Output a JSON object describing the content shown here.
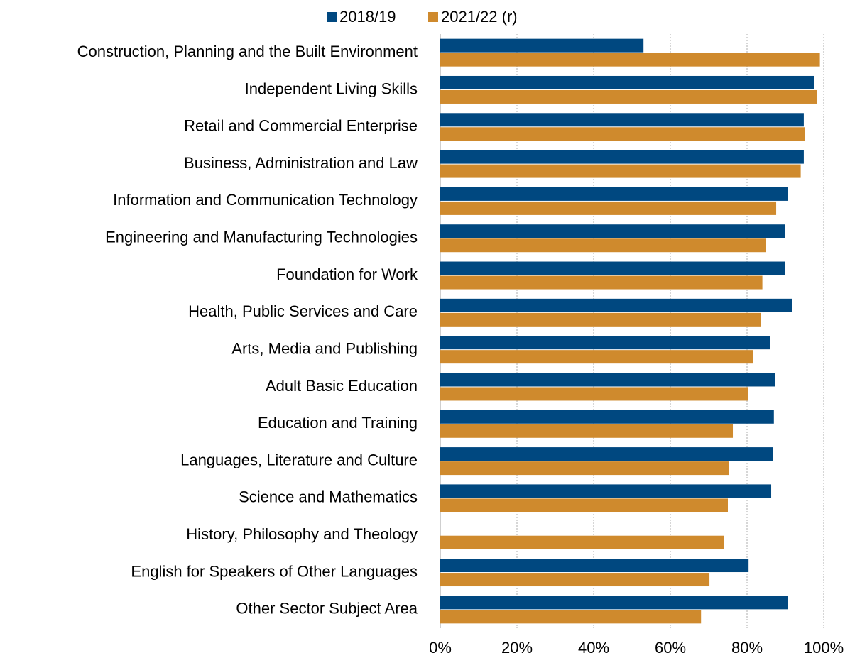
{
  "chart_data": {
    "type": "hbar",
    "categories": [
      "Construction, Planning and the Built Environment",
      "Independent Living Skills",
      "Retail and Commercial Enterprise",
      "Business, Administration and Law",
      "Information and Communication Technology",
      "Engineering and Manufacturing Technologies",
      "Foundation for Work",
      "Health, Public Services and Care",
      "Arts, Media and Publishing",
      "Adult Basic Education",
      "Education and Training",
      "Languages, Literature and Culture",
      "Science and Mathematics",
      "History, Philosophy and Theology",
      "English for Speakers of Other Languages",
      "Other Sector Subject Area"
    ],
    "series": [
      {
        "name": "2018/19",
        "color": "#004880",
        "values": [
          53,
          97.5,
          94.8,
          94.8,
          90.6,
          90,
          90,
          91.7,
          86,
          87.4,
          87,
          86.7,
          86.3,
          null,
          80.4,
          90.6
        ]
      },
      {
        "name": "2021/22 (r)",
        "color": "#cf8a2d",
        "values": [
          99,
          98.3,
          95,
          94,
          87.6,
          85,
          84,
          83.7,
          81.5,
          80.2,
          76.3,
          75.2,
          75,
          74,
          70.2,
          68
        ]
      }
    ],
    "xlim": [
      0,
      100
    ],
    "xticks": [
      {
        "value": 0,
        "label": "0%"
      },
      {
        "value": 20,
        "label": "20%"
      },
      {
        "value": 40,
        "label": "40%"
      },
      {
        "value": 60,
        "label": "60%"
      },
      {
        "value": 80,
        "label": "80%"
      },
      {
        "value": 100,
        "label": "100%"
      }
    ],
    "grid": true,
    "legend": "top"
  }
}
